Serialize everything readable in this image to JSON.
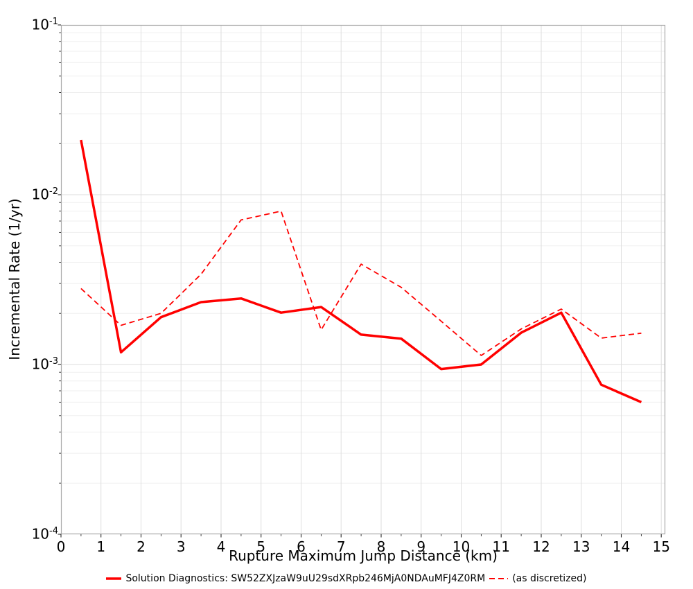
{
  "chart_data": {
    "type": "line",
    "title": "",
    "xlabel": "Rupture Maximum Jump Distance (km)",
    "ylabel": "Incremental Rate (1/yr)",
    "x_axis": {
      "min": 0,
      "max": 15.1,
      "major_ticks": [
        0,
        1,
        2,
        3,
        4,
        5,
        6,
        7,
        8,
        9,
        10,
        11,
        12,
        13,
        14,
        15
      ],
      "minor_tick_step": 0.5
    },
    "y_axis": {
      "scale": "log",
      "min": 0.0001,
      "max": 0.1,
      "tick_exponents": [
        -1,
        -2,
        -3,
        -4
      ]
    },
    "grid": {
      "major": true,
      "minor_log": true
    },
    "legend_position": "bottom-center",
    "x": [
      0.5,
      1.5,
      2.5,
      3.5,
      4.5,
      5.5,
      6.5,
      7.5,
      8.5,
      9.5,
      10.5,
      11.5,
      12.5,
      13.5,
      14.5
    ],
    "series": [
      {
        "name": "Solution Diagnostics: SW52ZXJzaW9uU29sdXRpb246MjA0NDAuMFJ4Z0RM",
        "style": "solid",
        "color": "#ff0000",
        "line_width": 3.5,
        "values": [
          0.021,
          0.00118,
          0.0019,
          0.00233,
          0.00245,
          0.00202,
          0.00218,
          0.0015,
          0.00142,
          0.00094,
          0.001,
          0.00154,
          0.00202,
          0.00076,
          0.0006
        ]
      },
      {
        "name": "(as discretized)",
        "style": "dashed",
        "color": "#ff0000",
        "line_width": 1.8,
        "values": [
          0.0028,
          0.0017,
          0.002,
          0.0034,
          0.0071,
          0.008,
          0.0016,
          0.0039,
          0.00285,
          0.0018,
          0.00113,
          0.00162,
          0.00212,
          0.00143,
          0.00153
        ]
      }
    ]
  },
  "colors": {
    "line_red": "#ff0000",
    "grid_major": "#dedede",
    "grid_minor": "#efefef",
    "plot_border": "#a8a8a8",
    "tick": "#262626",
    "text": "#000000"
  }
}
